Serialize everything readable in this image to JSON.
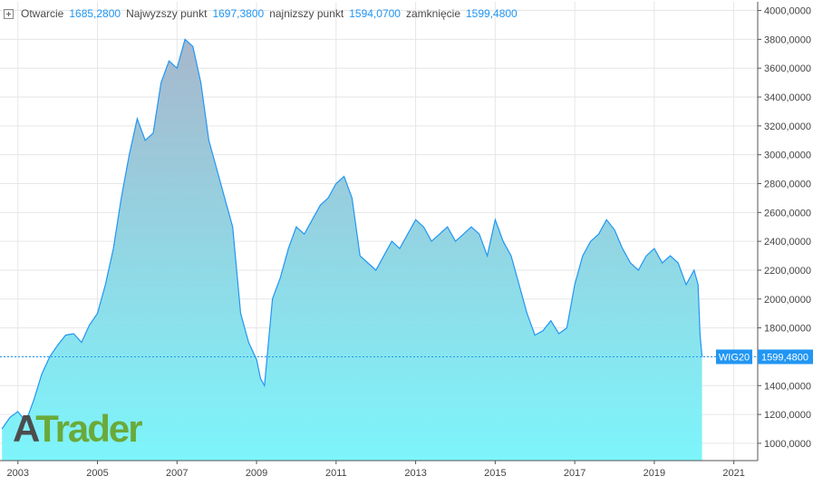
{
  "ohlc": {
    "open_label": "Otwarcie",
    "open_value": "1685,2800",
    "high_label": "Najwyzszy punkt",
    "high_value": "1697,3800",
    "low_label": "najnizszy punkt",
    "low_value": "1594,0700",
    "close_label": "zamknięcie",
    "close_value": "1599,4800"
  },
  "watermark": {
    "part1": "A",
    "part2": "T",
    "part3": "rader"
  },
  "colors": {
    "line": "#2196f3",
    "fill_top": "#a7b7cc",
    "fill_bottom": "#7df5fb",
    "grid": "#e6e6e6",
    "badge_bg": "#2196f3",
    "badge_text": "#ffffff"
  },
  "chart_data": {
    "type": "area",
    "series": [
      {
        "name": "WIG20",
        "x": [
          2002.6,
          2002.8,
          2003.0,
          2003.2,
          2003.4,
          2003.6,
          2003.8,
          2004.0,
          2004.2,
          2004.4,
          2004.6,
          2004.8,
          2005.0,
          2005.2,
          2005.4,
          2005.6,
          2005.8,
          2006.0,
          2006.2,
          2006.4,
          2006.6,
          2006.8,
          2007.0,
          2007.2,
          2007.4,
          2007.6,
          2007.8,
          2008.0,
          2008.2,
          2008.4,
          2008.6,
          2008.8,
          2009.0,
          2009.1,
          2009.2,
          2009.4,
          2009.6,
          2009.8,
          2010.0,
          2010.2,
          2010.4,
          2010.6,
          2010.8,
          2011.0,
          2011.2,
          2011.4,
          2011.6,
          2011.8,
          2012.0,
          2012.2,
          2012.4,
          2012.6,
          2012.8,
          2013.0,
          2013.2,
          2013.4,
          2013.6,
          2013.8,
          2014.0,
          2014.2,
          2014.4,
          2014.6,
          2014.8,
          2015.0,
          2015.2,
          2015.4,
          2015.6,
          2015.8,
          2016.0,
          2016.2,
          2016.4,
          2016.6,
          2016.8,
          2017.0,
          2017.2,
          2017.4,
          2017.6,
          2017.8,
          2018.0,
          2018.2,
          2018.4,
          2018.6,
          2018.8,
          2019.0,
          2019.2,
          2019.4,
          2019.6,
          2019.8,
          2020.0,
          2020.1,
          2020.15,
          2020.2
        ],
        "values": [
          1100,
          1180,
          1220,
          1150,
          1300,
          1480,
          1600,
          1680,
          1750,
          1760,
          1700,
          1820,
          1900,
          2100,
          2350,
          2700,
          3000,
          3250,
          3100,
          3150,
          3500,
          3650,
          3600,
          3800,
          3750,
          3500,
          3100,
          2900,
          2700,
          2500,
          1900,
          1700,
          1580,
          1450,
          1400,
          2000,
          2150,
          2350,
          2500,
          2450,
          2550,
          2650,
          2700,
          2800,
          2850,
          2700,
          2300,
          2250,
          2200,
          2300,
          2400,
          2350,
          2450,
          2550,
          2500,
          2400,
          2450,
          2500,
          2400,
          2450,
          2500,
          2450,
          2300,
          2550,
          2400,
          2300,
          2100,
          1900,
          1750,
          1780,
          1850,
          1760,
          1800,
          2100,
          2300,
          2400,
          2450,
          2550,
          2480,
          2350,
          2250,
          2200,
          2300,
          2350,
          2250,
          2300,
          2250,
          2100,
          2200,
          2100,
          1750,
          1600
        ]
      }
    ],
    "last_label": "WIG20",
    "last_value_text": "1599,4800",
    "last_value": 1599.48,
    "x_ticks": [
      2003,
      2005,
      2007,
      2009,
      2011,
      2013,
      2015,
      2017,
      2019,
      2021
    ],
    "y_ticks": [
      1000,
      1200,
      1400,
      1600,
      1800,
      2000,
      2200,
      2400,
      2600,
      2800,
      3000,
      3200,
      3400,
      3600,
      3800,
      4000
    ],
    "y_tick_labels": [
      "1000,0000",
      "1200,0000",
      "1400,0000",
      "",
      "1800,0000",
      "2000,0000",
      "2200,0000",
      "2400,0000",
      "2600,0000",
      "2800,0000",
      "3000,0000",
      "3200,0000",
      "3400,0000",
      "3600,0000",
      "3800,0000",
      "4000,0000"
    ],
    "xlim": [
      2002.55,
      2021.6
    ],
    "ylim": [
      880,
      4060
    ],
    "grid": true,
    "legend": "none"
  }
}
